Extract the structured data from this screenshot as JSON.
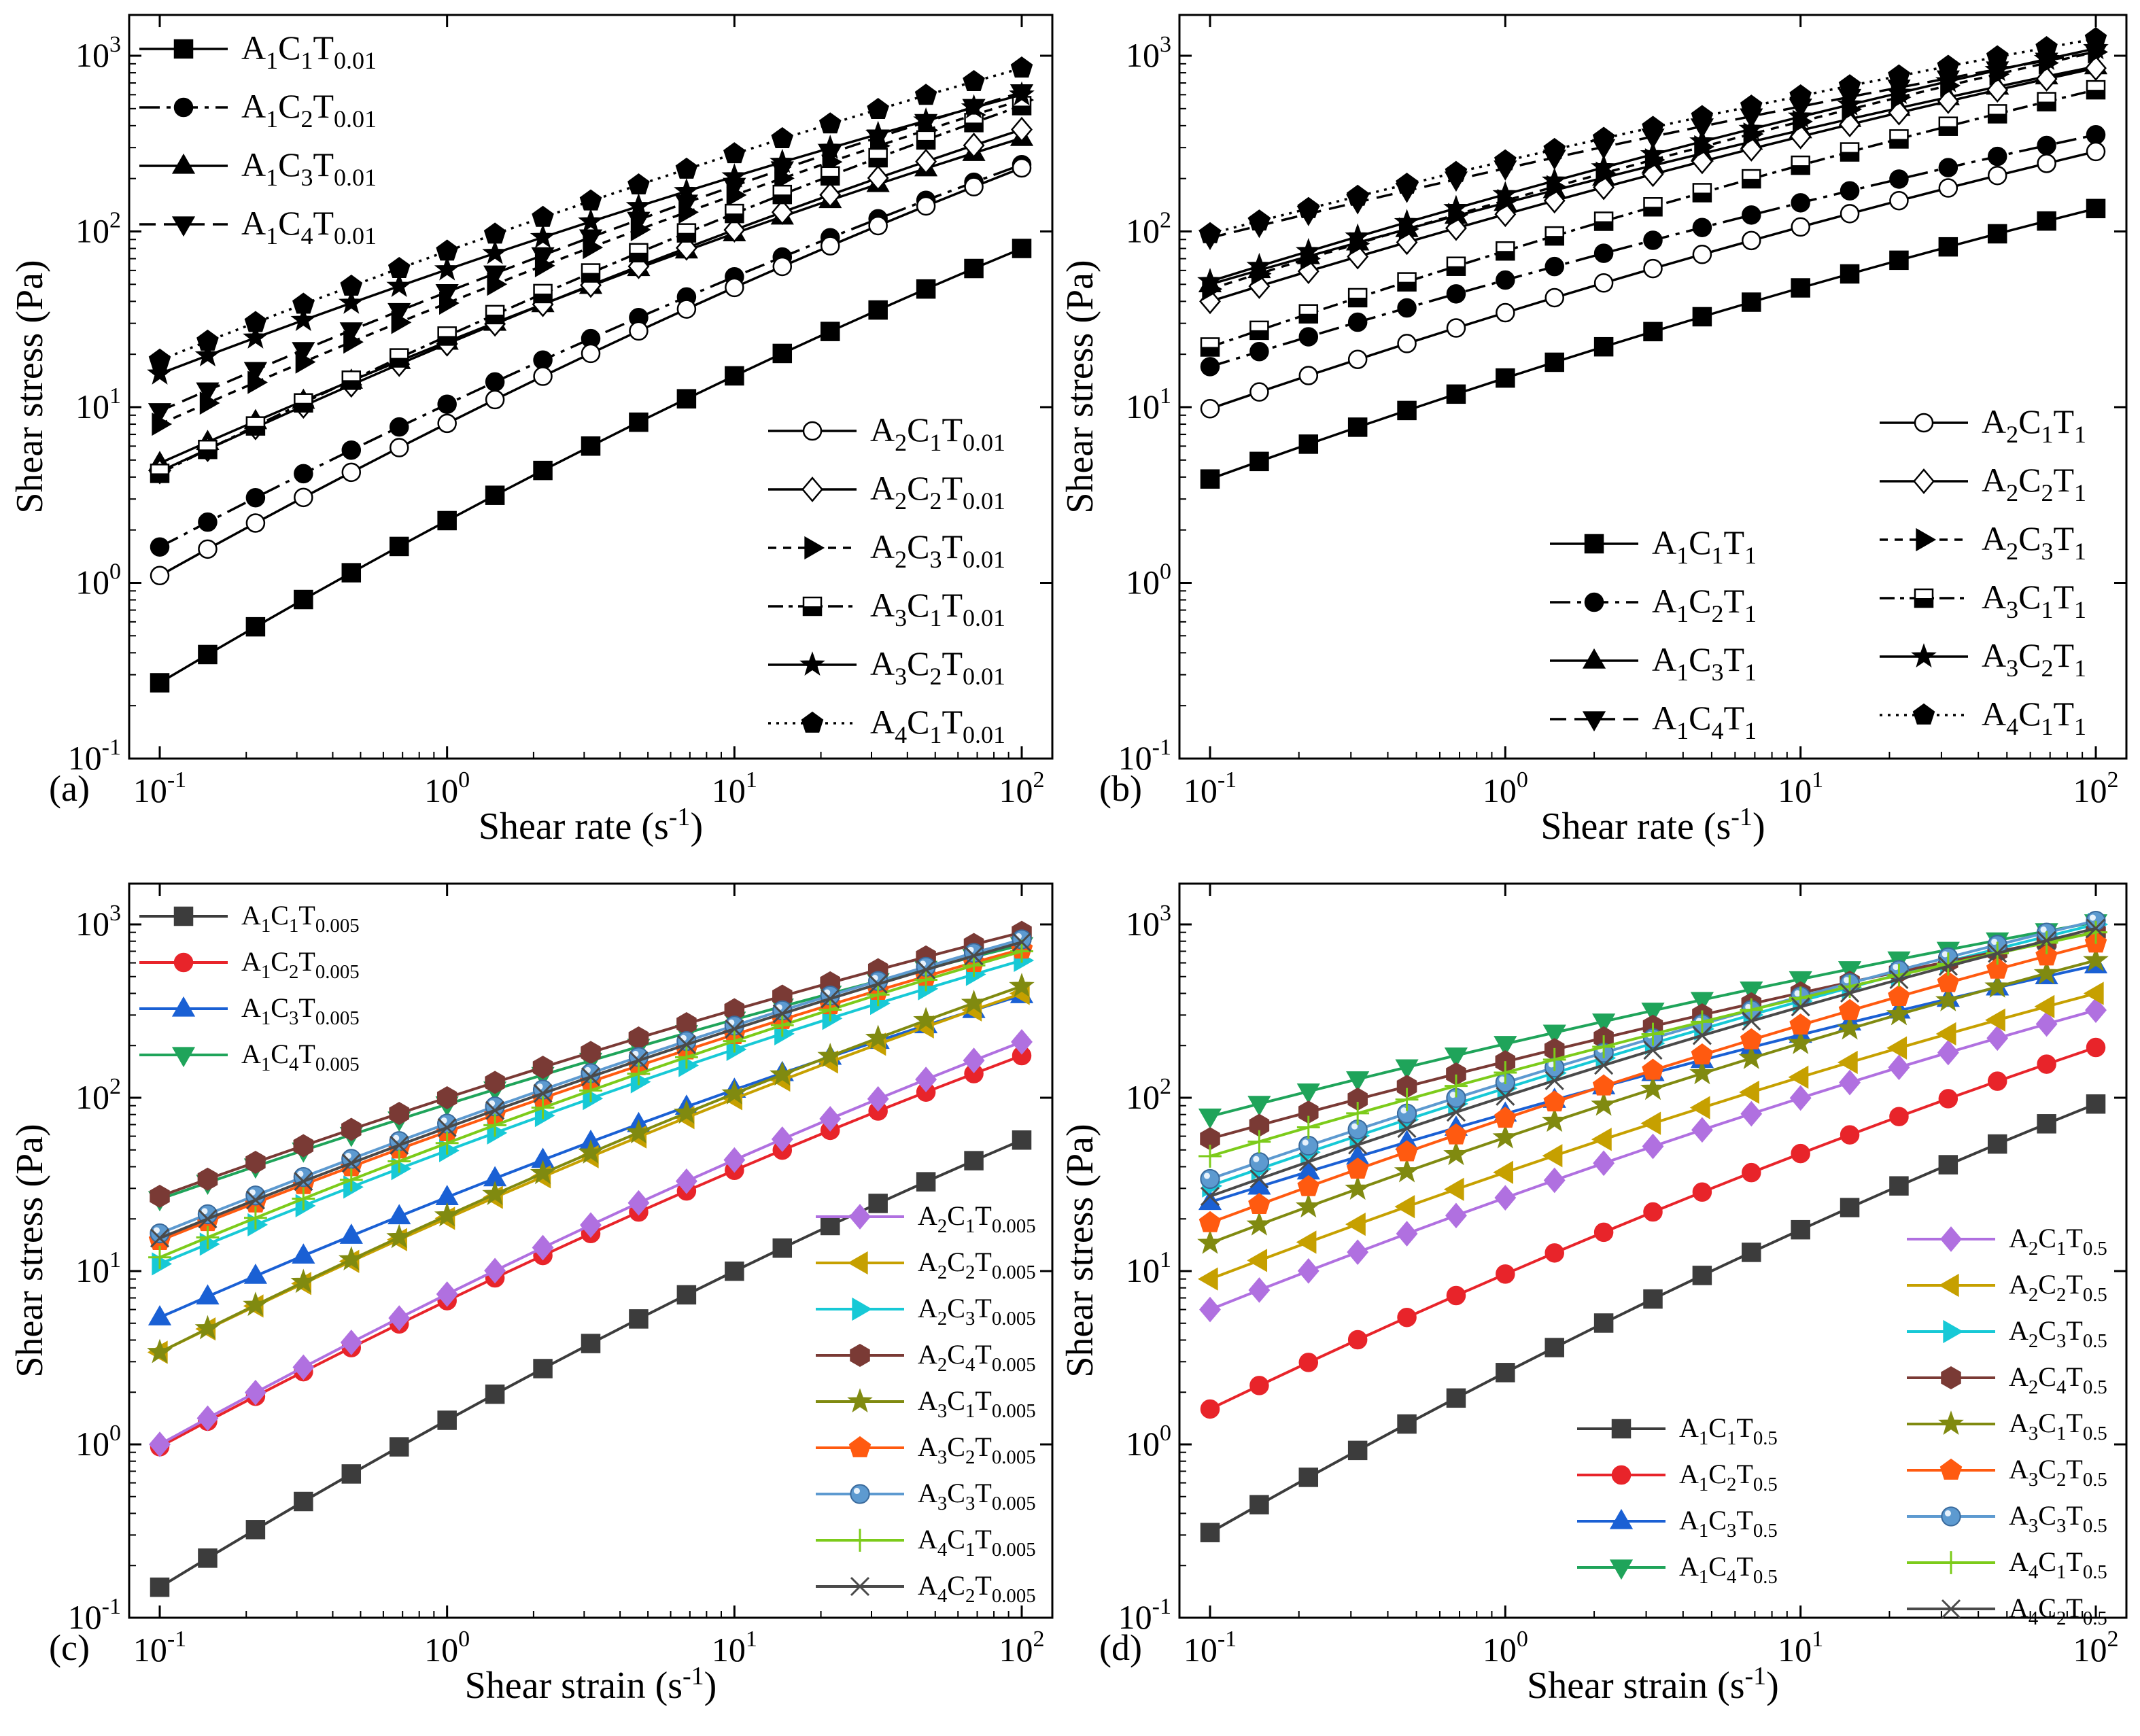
{
  "colors": {
    "A1C1": "#3c3c3c",
    "A1C2": "#e8242a",
    "A1C3": "#1a60d4",
    "A1C4": "#1fa45a",
    "A2C1": "#b070e0",
    "A2C2": "#c6a000",
    "A2C3": "#17c9d6",
    "A2C4": "#7a3a35",
    "A3C1": "#808a10",
    "A3C2": "#ff5a10",
    "A3C3": "#5d9ad0",
    "A4C1": "#7ccb1a",
    "A4C2": "#4a4a4a",
    "mono": "#000000"
  },
  "chart_data": [
    {
      "panel": "(a)",
      "type": "line",
      "xscale": "log",
      "yscale": "log",
      "xlim": [
        0.1,
        100
      ],
      "ylim": [
        0.1,
        1000
      ],
      "xlabel": "Shear rate (s-1)",
      "ylabel": "Shear stress (Pa)",
      "x_ticks": [
        "10-1",
        "100",
        "101",
        "102"
      ],
      "y_ticks": [
        "10-1",
        "100",
        "101",
        "102",
        "103"
      ],
      "legend_position": [
        "top-left",
        "bottom-right"
      ],
      "series": [
        {
          "name": "A1C1T0.01",
          "y0": 0.27,
          "y1": 80
        },
        {
          "name": "A1C2T0.01",
          "y0": 1.6,
          "y1": 240
        },
        {
          "name": "A1C3T0.01",
          "y0": 4.8,
          "y1": 340
        },
        {
          "name": "A1C4T0.01",
          "y0": 9.5,
          "y1": 620
        },
        {
          "name": "A2C1T0.01",
          "y0": 1.1,
          "y1": 230
        },
        {
          "name": "A2C2T0.01",
          "y0": 4.3,
          "y1": 380
        },
        {
          "name": "A2C3T0.01",
          "y0": 8.0,
          "y1": 560
        },
        {
          "name": "A3C1T0.01",
          "y0": 4.2,
          "y1": 520
        },
        {
          "name": "A3C2T0.01",
          "y0": 15.5,
          "y1": 600
        },
        {
          "name": "A4C1T0.01",
          "y0": 18.5,
          "y1": 850
        }
      ]
    },
    {
      "panel": "(b)",
      "type": "line",
      "xscale": "log",
      "yscale": "log",
      "xlim": [
        0.1,
        100
      ],
      "ylim": [
        0.1,
        1000
      ],
      "xlabel": "Shear rate (s-1)",
      "ylabel": "Shear stress (Pa)",
      "x_ticks": [
        "10-1",
        "100",
        "101",
        "102"
      ],
      "y_ticks": [
        "10-1",
        "100",
        "101",
        "102",
        "103"
      ],
      "legend_position": [
        "bottom-center",
        "bottom-right"
      ],
      "series": [
        {
          "name": "A1C1T1",
          "y0": 3.9,
          "y1": 135
        },
        {
          "name": "A1C2T1",
          "y0": 17,
          "y1": 355
        },
        {
          "name": "A1C3T1",
          "y0": 50,
          "y1": 870
        },
        {
          "name": "A1C4T1",
          "y0": 92,
          "y1": 1050
        },
        {
          "name": "A2C1T1",
          "y0": 9.8,
          "y1": 285
        },
        {
          "name": "A2C2T1",
          "y0": 40,
          "y1": 850
        },
        {
          "name": "A2C3T1",
          "y0": 47,
          "y1": 1050
        },
        {
          "name": "A3C1T1",
          "y0": 22,
          "y1": 640
        },
        {
          "name": "A3C2T1",
          "y0": 52,
          "y1": 1100
        },
        {
          "name": "A4C1T1",
          "y0": 97,
          "y1": 1250
        }
      ]
    },
    {
      "panel": "(c)",
      "type": "line",
      "xscale": "log",
      "yscale": "log",
      "xlim": [
        0.1,
        100
      ],
      "ylim": [
        0.1,
        1000
      ],
      "xlabel": "Shear strain (s-1)",
      "ylabel": "Shear stress (Pa)",
      "x_ticks": [
        "10-1",
        "100",
        "101",
        "102"
      ],
      "y_ticks": [
        "10-1",
        "100",
        "101",
        "102",
        "103"
      ],
      "legend_position": [
        "top-left",
        "bottom-right"
      ],
      "series": [
        {
          "name": "A1C1T0.005",
          "y0": 0.15,
          "y1": 57
        },
        {
          "name": "A1C2T0.005",
          "y0": 0.97,
          "y1": 175
        },
        {
          "name": "A1C3T0.005",
          "y0": 5.4,
          "y1": 390
        },
        {
          "name": "A1C4T0.005",
          "y0": 26,
          "y1": 760
        },
        {
          "name": "A2C1T0.005",
          "y0": 1.0,
          "y1": 210
        },
        {
          "name": "A2C2T0.005",
          "y0": 3.4,
          "y1": 400
        },
        {
          "name": "A2C3T0.005",
          "y0": 11,
          "y1": 620
        },
        {
          "name": "A2C4T0.005",
          "y0": 27,
          "y1": 900
        },
        {
          "name": "A3C1T0.005",
          "y0": 3.4,
          "y1": 440
        },
        {
          "name": "A3C2T0.005",
          "y0": 15,
          "y1": 720
        },
        {
          "name": "A3C3T0.005",
          "y0": 16.5,
          "y1": 820
        },
        {
          "name": "A4C1T0.005",
          "y0": 12,
          "y1": 700
        },
        {
          "name": "A4C2T0.005",
          "y0": 15.5,
          "y1": 790
        }
      ]
    },
    {
      "panel": "(d)",
      "type": "line",
      "xscale": "log",
      "yscale": "log",
      "xlim": [
        0.1,
        100
      ],
      "ylim": [
        0.1,
        1000
      ],
      "xlabel": "Shear strain (s-1)",
      "ylabel": "Shear stress (Pa)",
      "x_ticks": [
        "10-1",
        "100",
        "101",
        "102"
      ],
      "y_ticks": [
        "10-1",
        "100",
        "101",
        "102",
        "103"
      ],
      "legend_position": [
        "bottom-center",
        "bottom-right"
      ],
      "series": [
        {
          "name": "A1C1T0.5",
          "y0": 0.31,
          "y1": 92
        },
        {
          "name": "A1C2T0.5",
          "y0": 1.6,
          "y1": 195
        },
        {
          "name": "A1C3T0.5",
          "y0": 25,
          "y1": 580
        },
        {
          "name": "A1C4T0.5",
          "y0": 78,
          "y1": 1030
        },
        {
          "name": "A2C1T0.5",
          "y0": 6.0,
          "y1": 320
        },
        {
          "name": "A2C2T0.5",
          "y0": 9.0,
          "y1": 400
        },
        {
          "name": "A2C3T0.5",
          "y0": 31,
          "y1": 1000
        },
        {
          "name": "A2C4T0.5",
          "y0": 58,
          "y1": 900
        },
        {
          "name": "A3C1T0.5",
          "y0": 14.5,
          "y1": 620
        },
        {
          "name": "A3C2T0.5",
          "y0": 19,
          "y1": 780
        },
        {
          "name": "A3C3T0.5",
          "y0": 34,
          "y1": 1050
        },
        {
          "name": "A4C1T0.5",
          "y0": 46,
          "y1": 900
        },
        {
          "name": "A4C2T0.5",
          "y0": 27,
          "y1": 950
        }
      ]
    }
  ]
}
